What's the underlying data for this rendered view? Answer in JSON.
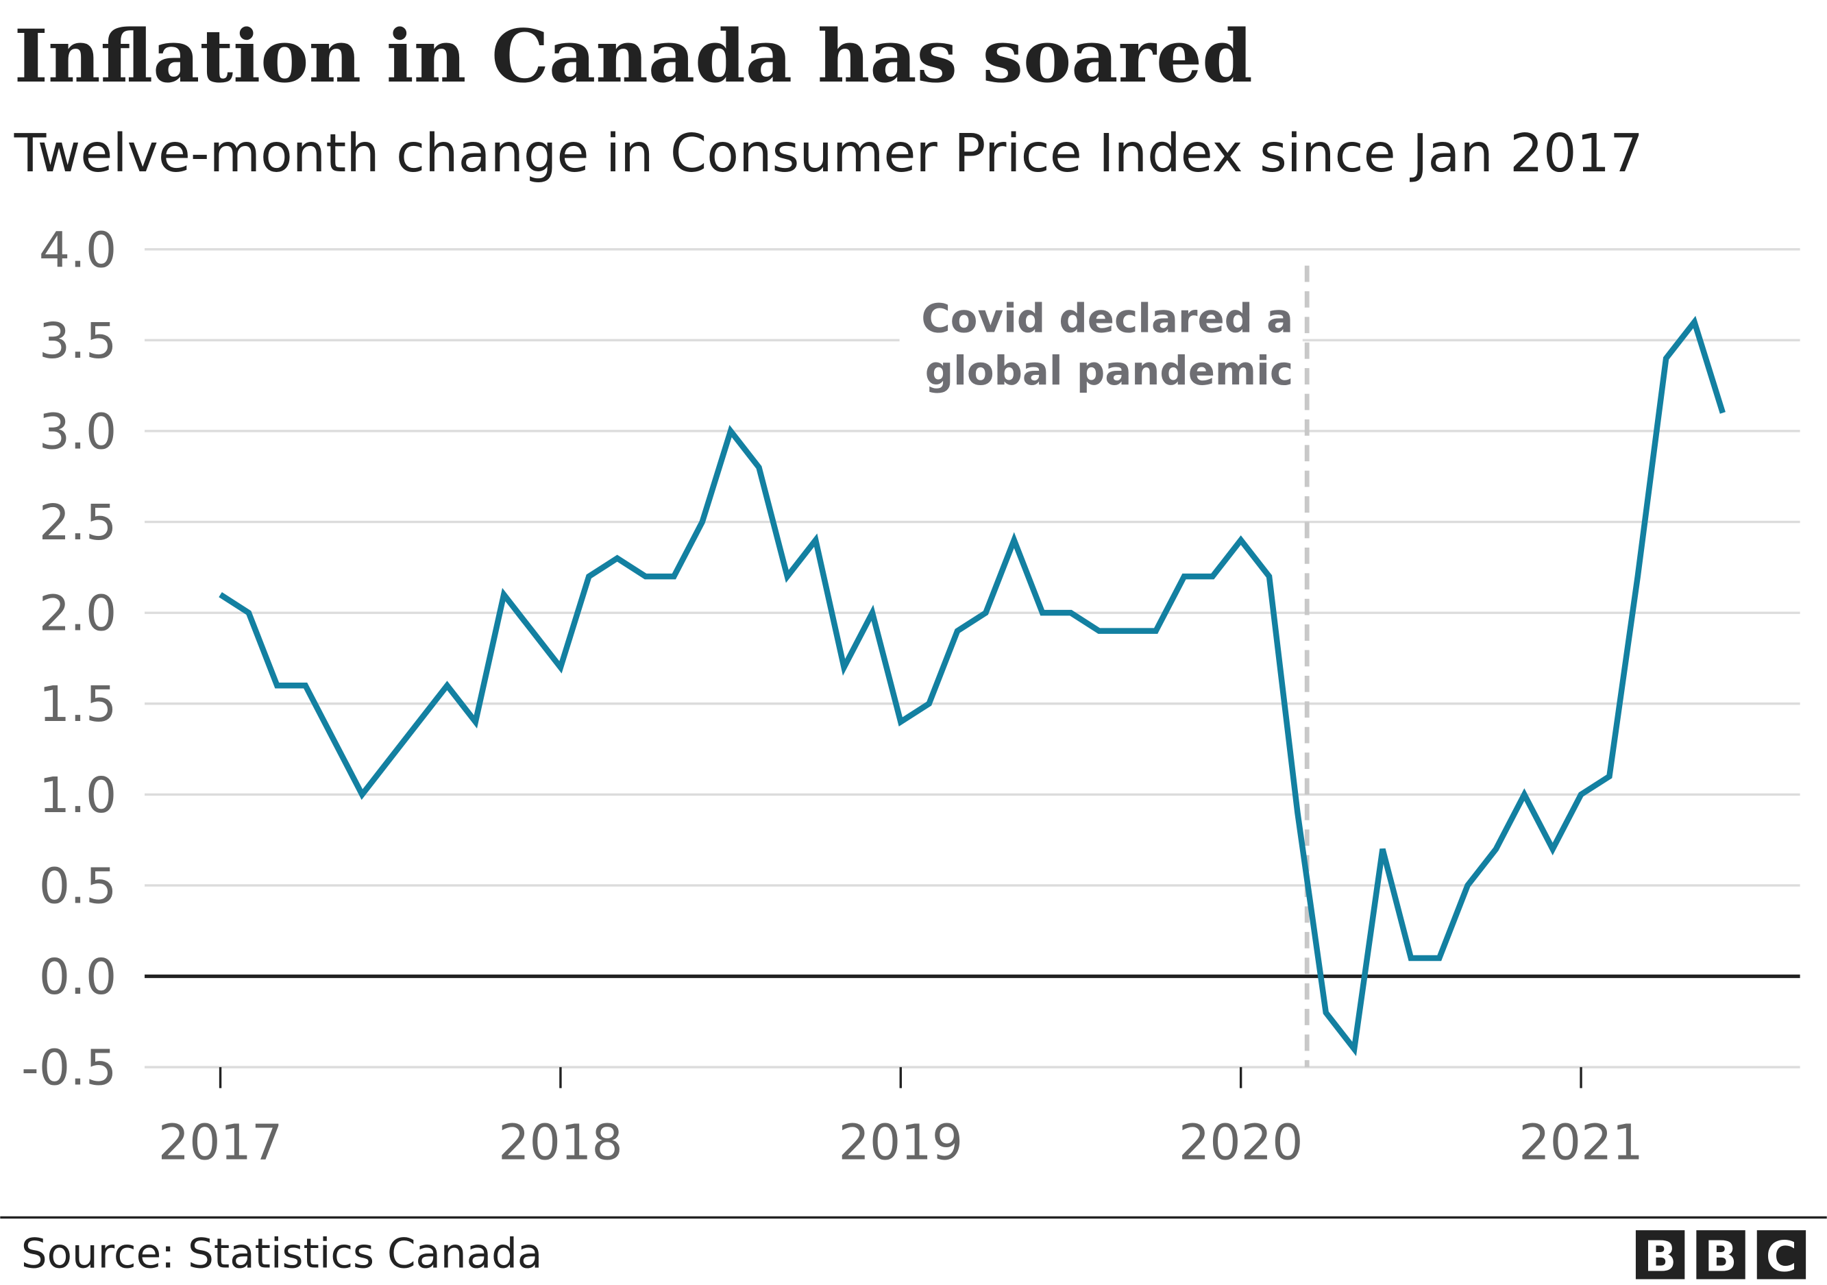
{
  "chart_data": {
    "type": "line",
    "title": "Inflation in Canada has soared",
    "subtitle": "Twelve-month change in Consumer Price Index since Jan 2017",
    "xlabel": "",
    "ylabel": "",
    "ylim": [
      -0.5,
      4.0
    ],
    "yticks": [
      "4.0",
      "3.5",
      "3.0",
      "2.5",
      "2.0",
      "1.5",
      "1.0",
      "0.5",
      "0.0",
      "-0.5"
    ],
    "xticks": [
      "2017",
      "2018",
      "2019",
      "2020",
      "2021"
    ],
    "grid": true,
    "series_color": "#1380A1",
    "x": [
      "2017-01",
      "2017-02",
      "2017-03",
      "2017-04",
      "2017-05",
      "2017-06",
      "2017-07",
      "2017-08",
      "2017-09",
      "2017-10",
      "2017-11",
      "2017-12",
      "2018-01",
      "2018-02",
      "2018-03",
      "2018-04",
      "2018-05",
      "2018-06",
      "2018-07",
      "2018-08",
      "2018-09",
      "2018-10",
      "2018-11",
      "2018-12",
      "2019-01",
      "2019-02",
      "2019-03",
      "2019-04",
      "2019-05",
      "2019-06",
      "2019-07",
      "2019-08",
      "2019-09",
      "2019-10",
      "2019-11",
      "2019-12",
      "2020-01",
      "2020-02",
      "2020-03",
      "2020-04",
      "2020-05",
      "2020-06",
      "2020-07",
      "2020-08",
      "2020-09",
      "2020-10",
      "2020-11",
      "2020-12",
      "2021-01",
      "2021-02",
      "2021-03",
      "2021-04",
      "2021-05",
      "2021-06"
    ],
    "values": [
      2.1,
      2.0,
      1.6,
      1.6,
      1.3,
      1.0,
      1.2,
      1.4,
      1.6,
      1.4,
      2.1,
      1.9,
      1.7,
      2.2,
      2.3,
      2.2,
      2.2,
      2.5,
      3.0,
      2.8,
      2.2,
      2.4,
      1.7,
      2.0,
      1.4,
      1.5,
      1.9,
      2.0,
      2.4,
      2.0,
      2.0,
      1.9,
      1.9,
      1.9,
      2.2,
      2.2,
      2.4,
      2.2,
      0.9,
      -0.2,
      -0.4,
      0.7,
      0.1,
      0.1,
      0.5,
      0.7,
      1.0,
      0.7,
      1.0,
      1.1,
      2.2,
      3.4,
      3.6,
      3.1
    ],
    "annotation": {
      "lines": [
        "Covid declared a",
        "global pandemic"
      ],
      "date": "2020-03-11"
    }
  },
  "footer": {
    "source": "Source: Statistics Canada",
    "logo": [
      "B",
      "B",
      "C"
    ]
  }
}
